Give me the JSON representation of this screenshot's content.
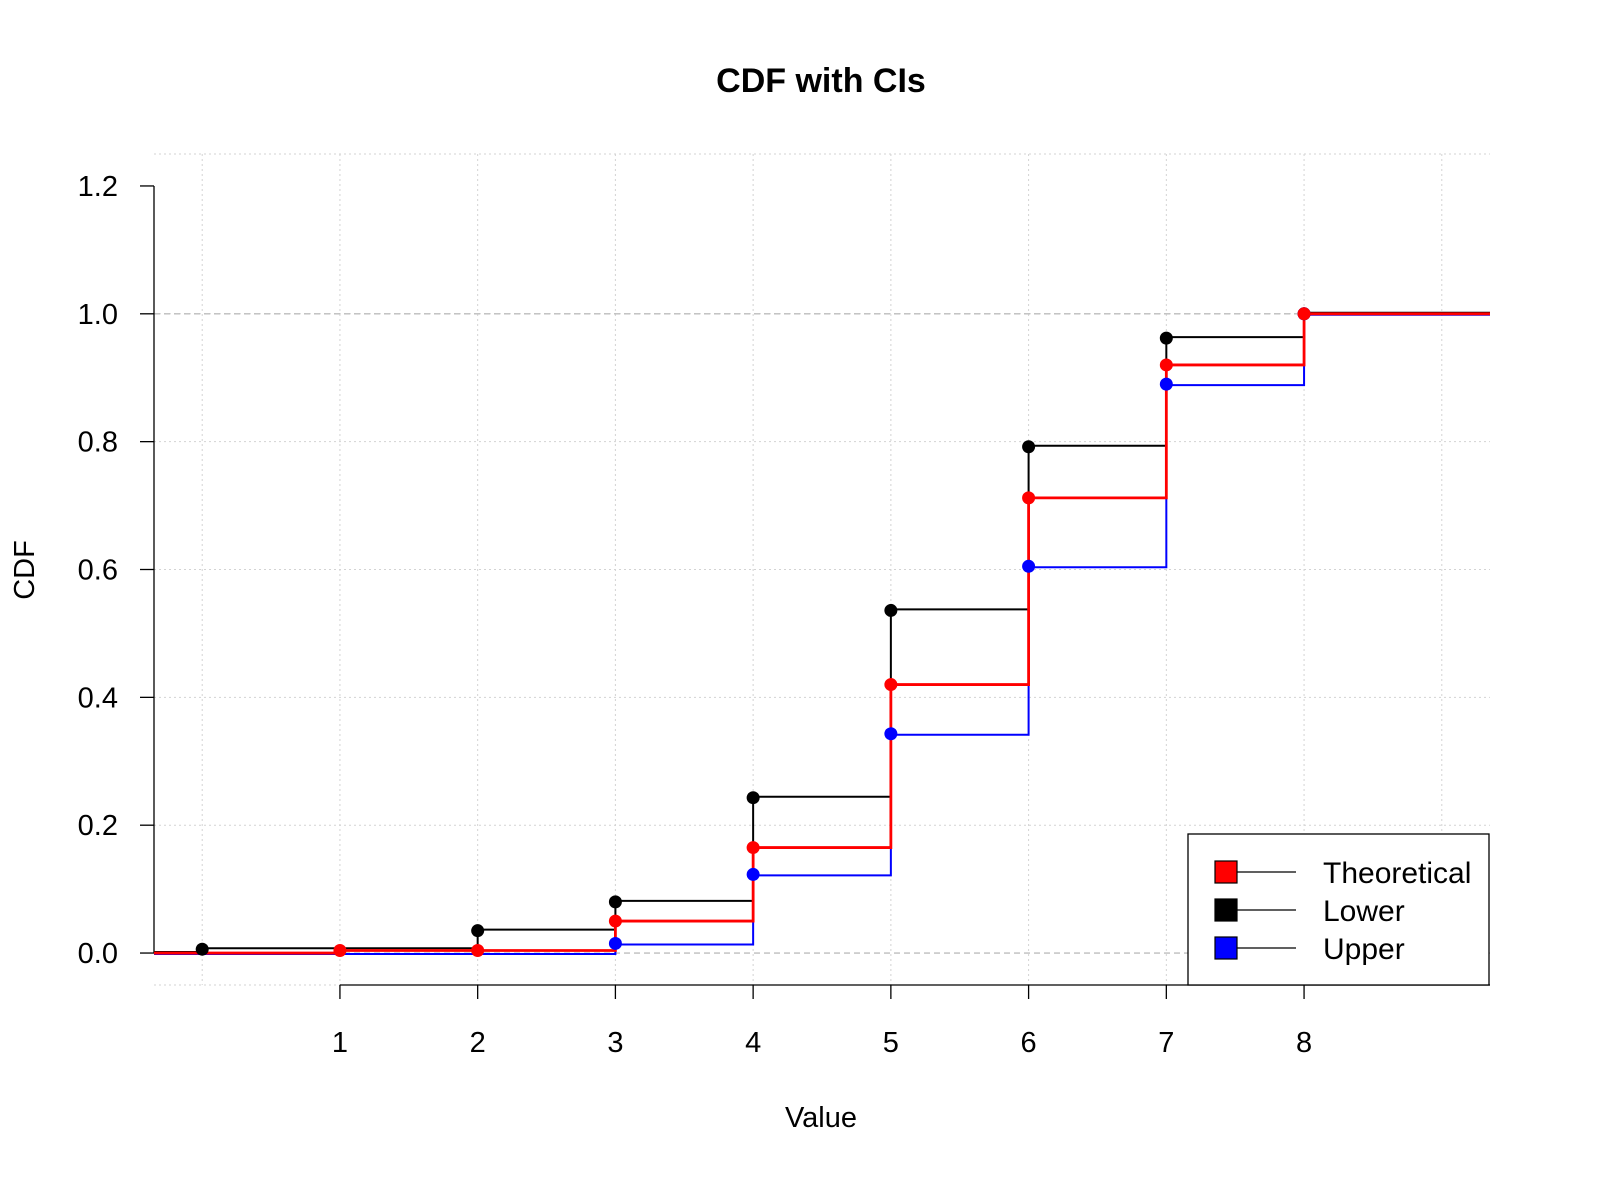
{
  "chart_data": {
    "type": "line",
    "title": "CDF with CIs",
    "xlabel": "Value",
    "ylabel": "CDF",
    "xlim": [
      -0.35,
      9.35
    ],
    "ylim": [
      -0.05,
      1.25
    ],
    "x_ticks": [
      "1",
      "2",
      "3",
      "4",
      "5",
      "6",
      "7",
      "8"
    ],
    "y_ticks": [
      "0.0",
      "0.2",
      "0.4",
      "0.6",
      "0.8",
      "1.0",
      "1.2"
    ],
    "grid": true,
    "step": true,
    "reference_lines_y": [
      0,
      1
    ],
    "legend_position": "bottom-right",
    "series": [
      {
        "name": "Theoretical",
        "color": "#ff0000",
        "x": [
          1,
          2,
          3,
          4,
          5,
          6,
          7,
          8
        ],
        "y": [
          0.004,
          0.004,
          0.05,
          0.165,
          0.42,
          0.712,
          0.92,
          1.0
        ]
      },
      {
        "name": "Lower",
        "color": "#000000",
        "x": [
          0,
          2,
          3,
          4,
          5,
          6,
          7,
          8
        ],
        "y": [
          0.006,
          0.035,
          0.08,
          0.243,
          0.536,
          0.792,
          0.962,
          1.0
        ]
      },
      {
        "name": "Upper",
        "color": "#0000ff",
        "x": [
          3,
          4,
          5,
          6,
          7,
          8
        ],
        "y": [
          0.015,
          0.123,
          0.343,
          0.605,
          0.89,
          1.0
        ]
      }
    ]
  }
}
